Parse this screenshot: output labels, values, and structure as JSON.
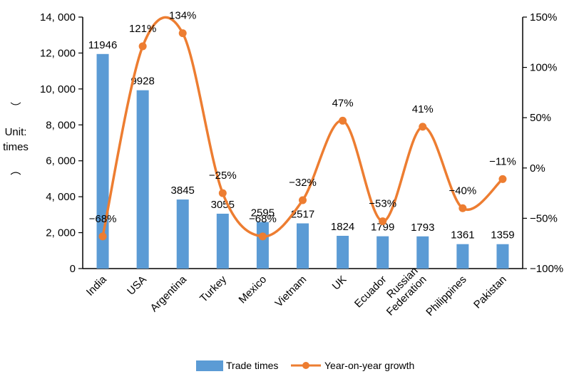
{
  "chart_data": {
    "type": "bar",
    "categories": [
      "India",
      "USA",
      "Argentina",
      "Turkey",
      "Mexico",
      "Vietnam",
      "UK",
      "Ecuador",
      "Russian Federation",
      "Philippines",
      "Pakistan"
    ],
    "category_lines": [
      [
        "India"
      ],
      [
        "USA"
      ],
      [
        "Argentina"
      ],
      [
        "Turkey"
      ],
      [
        "Mexico"
      ],
      [
        "Vietnam"
      ],
      [
        "UK"
      ],
      [
        "Ecuador"
      ],
      [
        "Russian",
        "Federation"
      ],
      [
        "Philippines"
      ],
      [
        "Pakistan"
      ]
    ],
    "series": [
      {
        "name": "Trade times",
        "type": "bar",
        "axis": "left",
        "color": "#5b9bd5",
        "values": [
          11946,
          9928,
          3845,
          3055,
          2595,
          2517,
          1824,
          1799,
          1793,
          1361,
          1359
        ],
        "labels": [
          "11946",
          "9928",
          "3845",
          "3055",
          "2595",
          "2517",
          "1824",
          "1799",
          "1793",
          "1361",
          "1359"
        ]
      },
      {
        "name": "Year-on-year growth",
        "type": "line",
        "axis": "right",
        "color": "#ed7d31",
        "values": [
          -68,
          121,
          134,
          -25,
          -68,
          -32,
          47,
          -53,
          41,
          -40,
          -11
        ],
        "labels": [
          "−68%",
          "121%",
          "134%",
          "−25%",
          "−68%",
          "−32%",
          "47%",
          "−53%",
          "41%",
          "−40%",
          "−11%"
        ]
      }
    ],
    "ylabel_lines": [
      "Unit:",
      "times"
    ],
    "ylabel_parens": [
      "︶",
      "︵"
    ],
    "ylim": [
      0,
      14000
    ],
    "y_ticks": [
      0,
      2000,
      4000,
      6000,
      8000,
      10000,
      12000,
      14000
    ],
    "y_tick_labels": [
      "0",
      "2, 000",
      "4, 000",
      "6, 000",
      "8, 000",
      "10, 000",
      "12, 000",
      "14, 000"
    ],
    "y2lim": [
      -100,
      150
    ],
    "y2_ticks": [
      -100,
      -50,
      0,
      50,
      100,
      150
    ],
    "y2_tick_labels": [
      "−100%",
      "−50%",
      "0%",
      "50%",
      "100%",
      "150%"
    ],
    "grid": false,
    "legend_position": "bottom"
  }
}
